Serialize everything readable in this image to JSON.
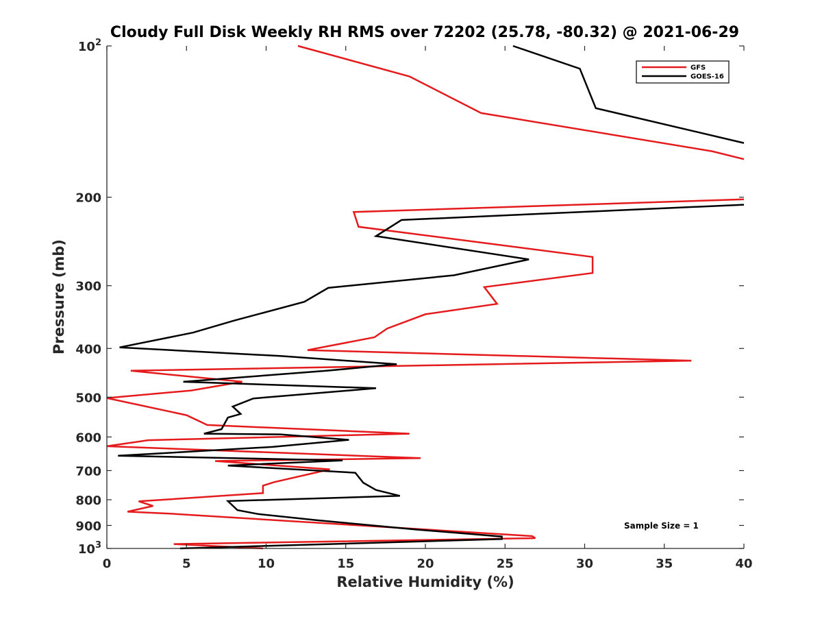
{
  "chart_data": {
    "type": "line",
    "title": "Cloudy Full Disk Weekly RH RMS over 72202 (25.78, -80.32) @ 2021-06-29",
    "xlabel": "Relative Humidity (%)",
    "ylabel": "Pressure (mb)",
    "xlim": [
      0,
      40
    ],
    "ylim": [
      100,
      1000
    ],
    "y_scale": "log",
    "y_reversed": true,
    "grid": false,
    "legend_position": "top-right",
    "x_ticks": [
      {
        "value": 0,
        "label": "0"
      },
      {
        "value": 5,
        "label": "5"
      },
      {
        "value": 10,
        "label": "10"
      },
      {
        "value": 15,
        "label": "15"
      },
      {
        "value": 20,
        "label": "20"
      },
      {
        "value": 25,
        "label": "25"
      },
      {
        "value": 30,
        "label": "30"
      },
      {
        "value": 35,
        "label": "35"
      },
      {
        "value": 40,
        "label": "40"
      }
    ],
    "y_ticks": [
      {
        "value": 100,
        "base": "10",
        "exp": "2"
      },
      {
        "value": 200,
        "label": "200"
      },
      {
        "value": 300,
        "label": "300"
      },
      {
        "value": 400,
        "label": "400"
      },
      {
        "value": 500,
        "label": "500"
      },
      {
        "value": 600,
        "label": "600"
      },
      {
        "value": 700,
        "label": "700"
      },
      {
        "value": 800,
        "label": "800"
      },
      {
        "value": 900,
        "label": "900"
      },
      {
        "value": 1000,
        "base": "10",
        "exp": "3"
      }
    ],
    "series": [
      {
        "name": "GFS",
        "color": "#e41a1c",
        "points": [
          [
            12,
            100
          ],
          [
            19,
            115
          ],
          [
            23.5,
            136
          ],
          [
            38,
            162
          ],
          [
            40,
            168
          ],
          [
            null,
            null
          ],
          [
            40,
            202
          ],
          [
            15.5,
            214
          ],
          [
            15.8,
            229
          ],
          [
            30.5,
            263
          ],
          [
            30.5,
            283
          ],
          [
            23.7,
            302
          ],
          [
            24.5,
            326
          ],
          [
            20,
            342
          ],
          [
            17.6,
            365
          ],
          [
            16.8,
            380
          ],
          [
            12.6,
            403
          ],
          [
            36.7,
            423
          ],
          [
            1.5,
            443
          ],
          [
            8.5,
            466
          ],
          [
            5.3,
            485
          ],
          [
            0,
            502
          ],
          [
            5,
            543
          ],
          [
            6.3,
            568
          ],
          [
            19,
            591
          ],
          [
            2.6,
            609
          ],
          [
            0,
            626
          ],
          [
            19.7,
            661
          ],
          [
            6.8,
            670
          ],
          [
            14,
            696
          ],
          [
            10.5,
            738
          ],
          [
            9.8,
            750
          ],
          [
            9.8,
            776
          ],
          [
            2,
            806
          ],
          [
            2.9,
            823
          ],
          [
            1.3,
            845
          ],
          [
            4.1,
            853
          ],
          [
            26.7,
            945
          ],
          [
            26.9,
            954
          ],
          [
            4.2,
            980
          ],
          [
            9.8,
            1000
          ]
        ]
      },
      {
        "name": "GOES-16",
        "color": "#000000",
        "points": [
          [
            25.5,
            100
          ],
          [
            29.7,
            111
          ],
          [
            30.7,
            133
          ],
          [
            40,
            156
          ],
          [
            null,
            null
          ],
          [
            40,
            207
          ],
          [
            18.5,
            222
          ],
          [
            16.9,
            239
          ],
          [
            26.5,
            266
          ],
          [
            21.8,
            286
          ],
          [
            13.9,
            303
          ],
          [
            12.4,
            323
          ],
          [
            8,
            352
          ],
          [
            5.4,
            372
          ],
          [
            0.8,
            398
          ],
          [
            10.9,
            414
          ],
          [
            18.2,
            430
          ],
          [
            13.8,
            443
          ],
          [
            4.8,
            466
          ],
          [
            16.9,
            480
          ],
          [
            9.2,
            503
          ],
          [
            7.9,
            522
          ],
          [
            8.4,
            540
          ],
          [
            7.6,
            549
          ],
          [
            7.2,
            579
          ],
          [
            6.1,
            591
          ],
          [
            10.9,
            593
          ],
          [
            15.2,
            608
          ],
          [
            10.4,
            628
          ],
          [
            0.7,
            654
          ],
          [
            14.8,
            668
          ],
          [
            7.6,
            684
          ],
          [
            15.6,
            707
          ],
          [
            16.1,
            740
          ],
          [
            16.9,
            765
          ],
          [
            18.4,
            786
          ],
          [
            7.6,
            805
          ],
          [
            8.2,
            839
          ],
          [
            9.5,
            854
          ],
          [
            13.1,
            878
          ],
          [
            19.4,
            917
          ],
          [
            22.7,
            935
          ],
          [
            24.8,
            947
          ],
          [
            24.8,
            958
          ],
          [
            4.6,
            1000
          ]
        ]
      }
    ],
    "annotation": "Sample Size = 1"
  }
}
